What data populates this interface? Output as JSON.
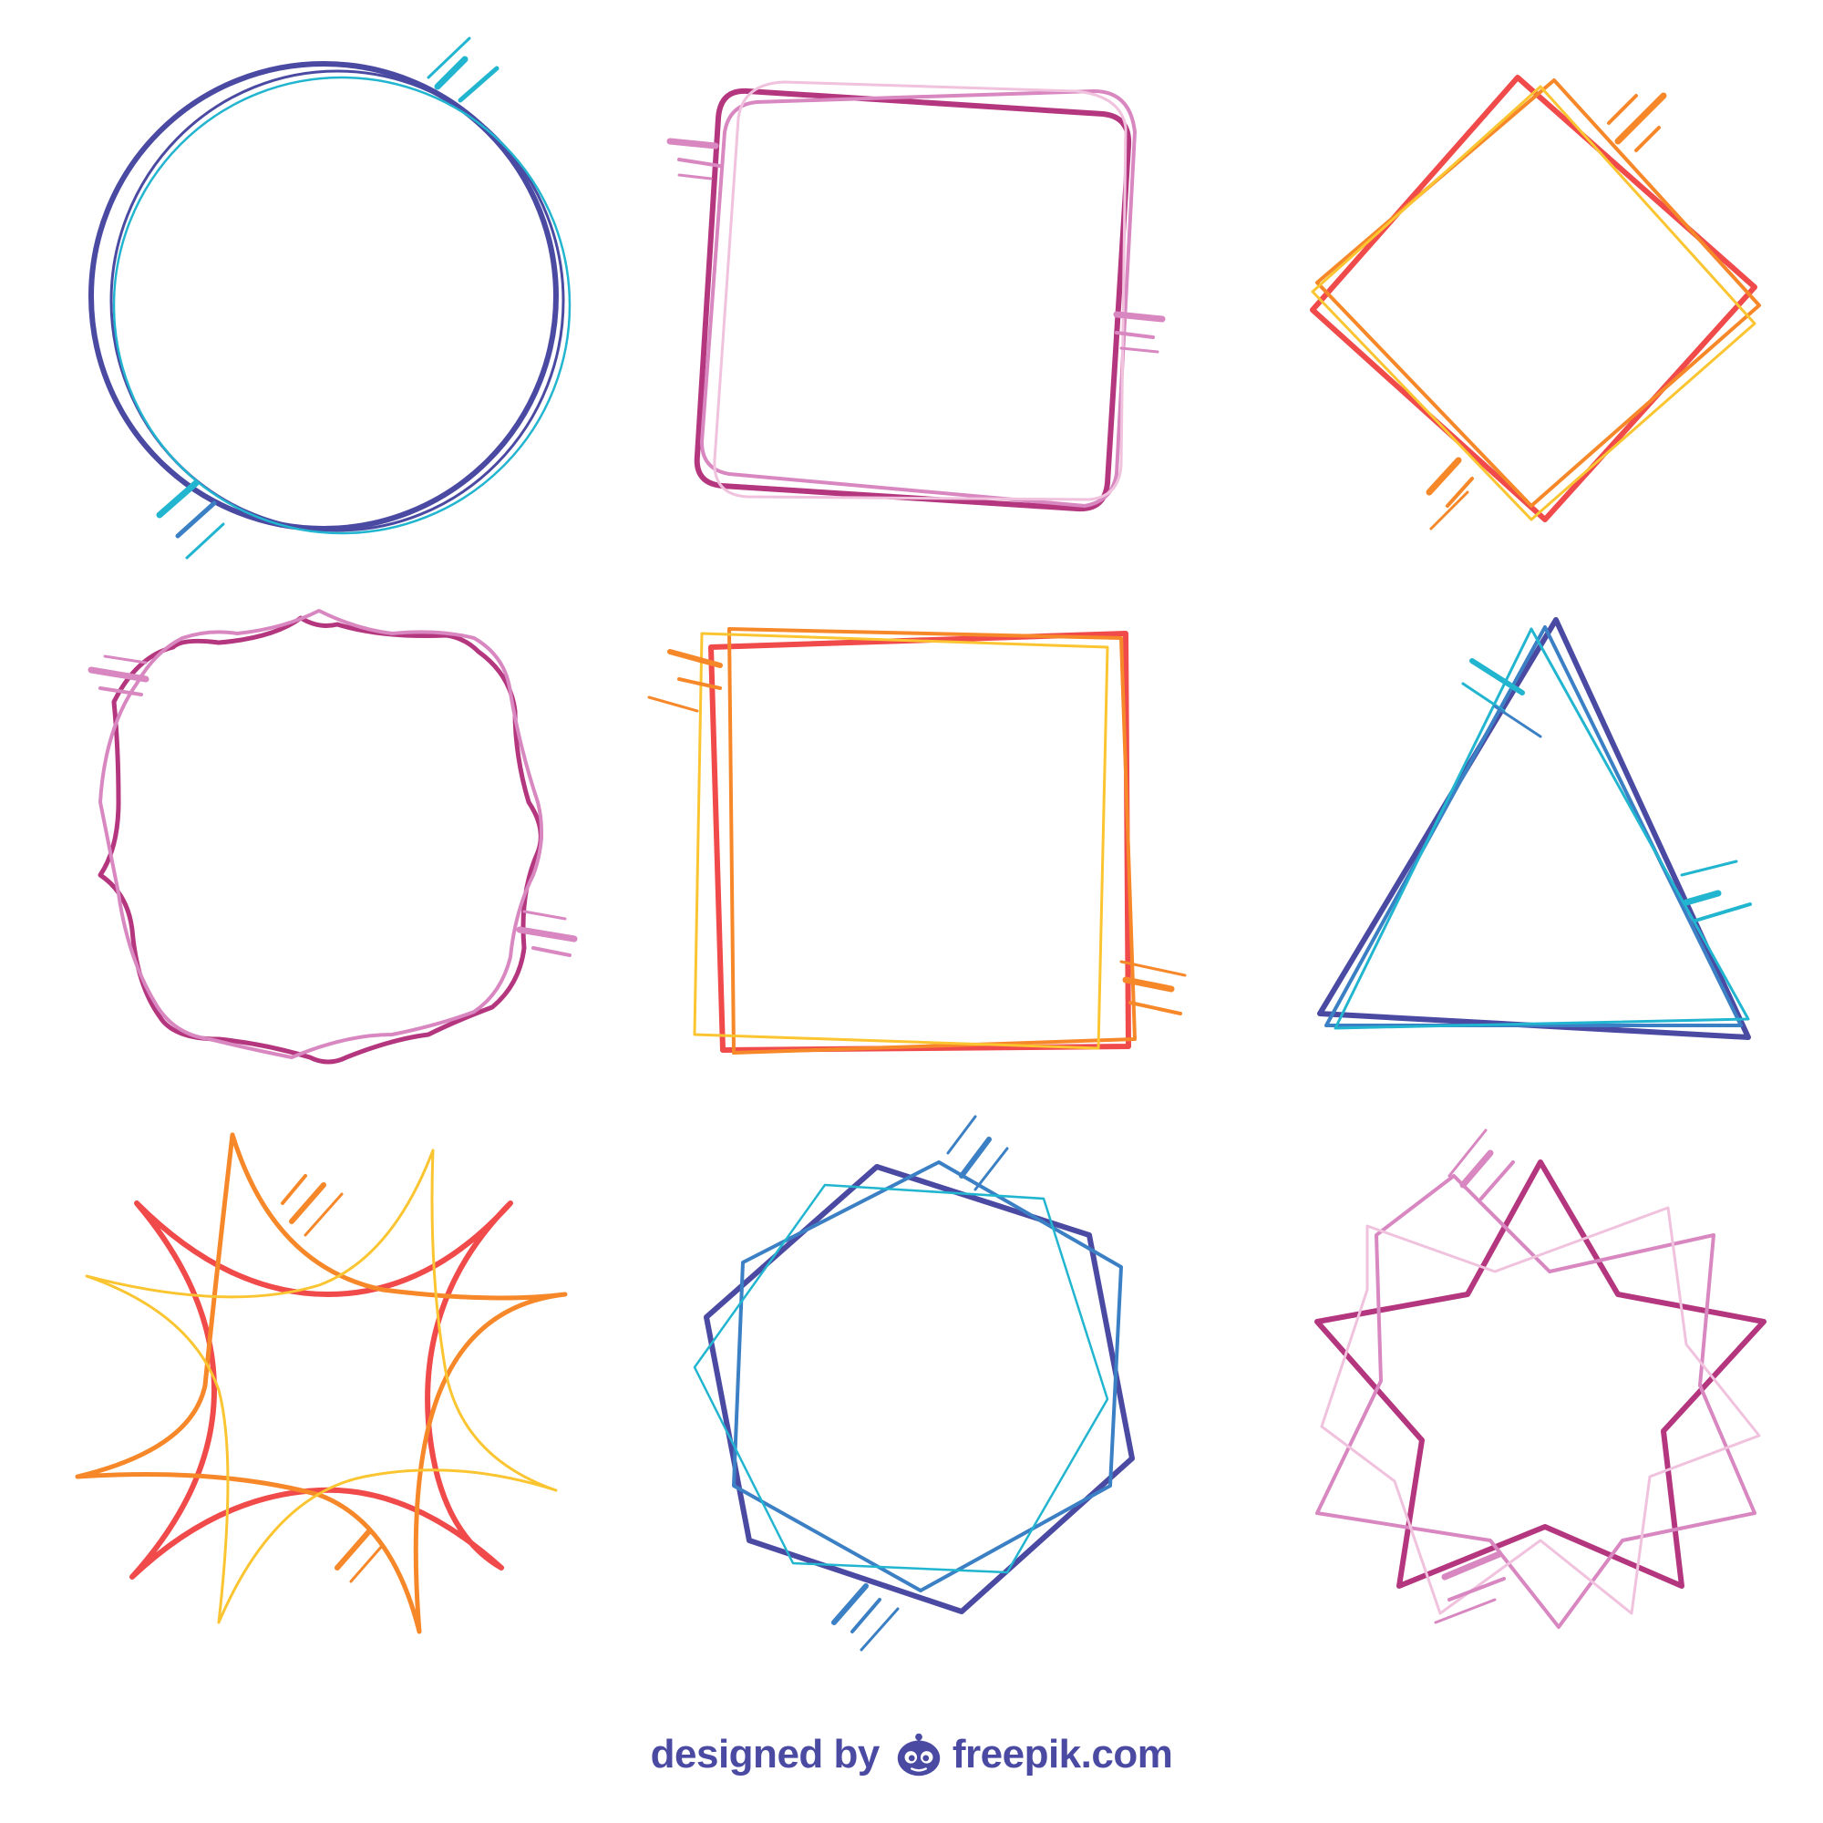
{
  "credit": {
    "prefix": "designed by",
    "brand": "freepik.com",
    "logo_icon": "freepik-logo-icon",
    "color": "#4b4aa3"
  },
  "palette": {
    "indigo": "#4b4aa3",
    "cyan": "#22b5d0",
    "blue": "#3b7fc4",
    "magenta": "#b4367e",
    "pink": "#d887c0",
    "light_pink": "#f0c2de",
    "red": "#f04a4a",
    "orange": "#f7882a",
    "yellow": "#fbc531"
  },
  "frames": [
    {
      "name": "circle-frame",
      "colors": [
        "indigo",
        "cyan"
      ]
    },
    {
      "name": "rounded-square-frame",
      "colors": [
        "magenta",
        "pink",
        "light_pink"
      ]
    },
    {
      "name": "diamond-frame",
      "colors": [
        "red",
        "orange",
        "yellow"
      ]
    },
    {
      "name": "ornate-frame",
      "colors": [
        "magenta",
        "pink"
      ]
    },
    {
      "name": "square-frame",
      "colors": [
        "red",
        "orange",
        "yellow"
      ]
    },
    {
      "name": "triangle-frame",
      "colors": [
        "indigo",
        "blue",
        "cyan"
      ]
    },
    {
      "name": "starburst-frame",
      "colors": [
        "red",
        "orange",
        "yellow"
      ]
    },
    {
      "name": "hexagon-frame",
      "colors": [
        "indigo",
        "blue",
        "cyan"
      ]
    },
    {
      "name": "star-frame",
      "colors": [
        "magenta",
        "pink",
        "light_pink"
      ]
    }
  ]
}
